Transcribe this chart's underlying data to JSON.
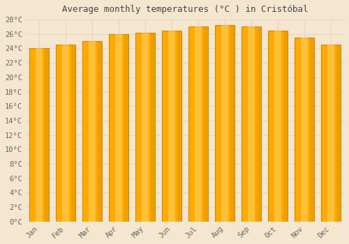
{
  "title": "Average monthly temperatures (°C ) in Cristóbal",
  "months": [
    "Jan",
    "Feb",
    "Mar",
    "Apr",
    "May",
    "Jun",
    "Jul",
    "Aug",
    "Sep",
    "Oct",
    "Nov",
    "Dec"
  ],
  "values": [
    24.0,
    24.5,
    25.0,
    26.0,
    26.2,
    26.5,
    27.0,
    27.2,
    27.0,
    26.5,
    25.5,
    24.5
  ],
  "bar_color": "#FFA500",
  "bar_edge_color": "#CC8800",
  "ylim": [
    0,
    28
  ],
  "ytick_step": 2,
  "background_color": "#F5E6D0",
  "plot_bg_color": "#F5E6D0",
  "grid_color": "#E8D5C0",
  "title_fontsize": 9,
  "tick_fontsize": 7.5,
  "title_color": "#444444",
  "tick_color": "#666666"
}
